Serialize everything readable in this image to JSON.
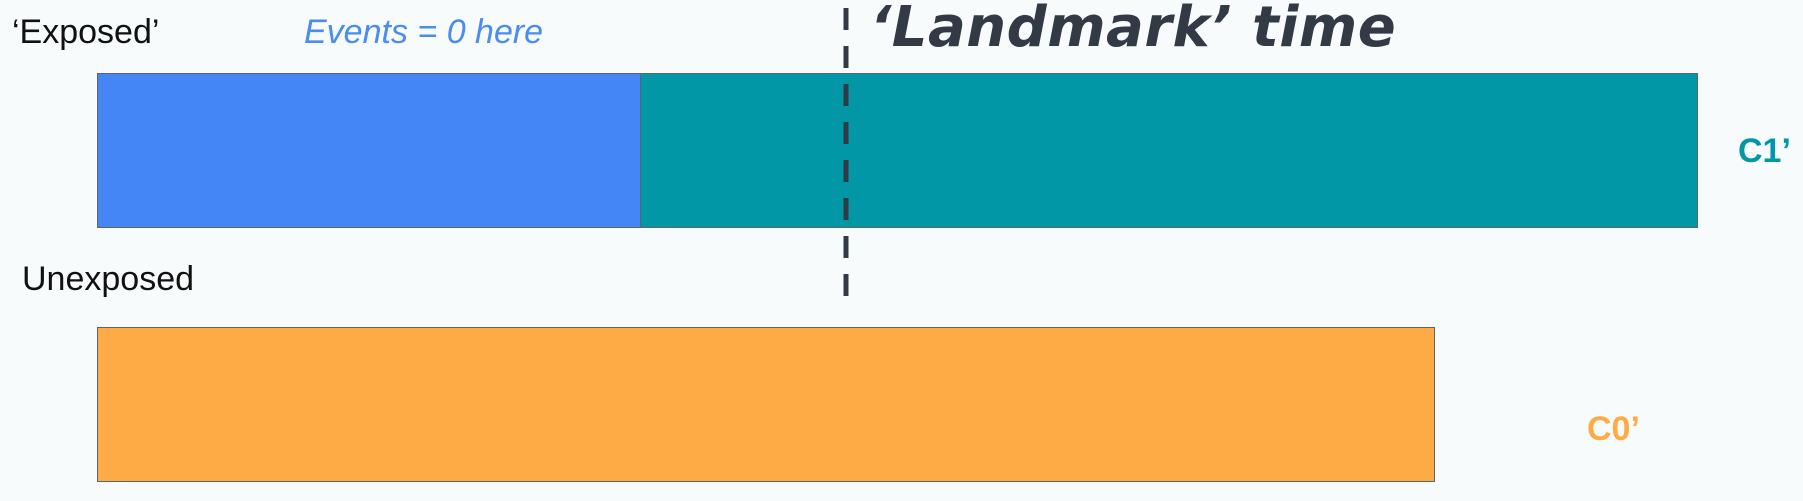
{
  "labels": {
    "exposed": "‘Exposed’",
    "unexposed": "Unexposed",
    "events_note": "Events = 0 here",
    "landmark_time": "‘Landmark’ time",
    "c1": "C1’",
    "c0": "C0’"
  },
  "colors": {
    "background": "#f7fbfc",
    "exposed_zero_bar": "#4486f5",
    "exposed_c1_bar": "#0297a7",
    "unexposed_c0_bar": "#ffab45",
    "landmark": "#323a45",
    "events_note": "#4a8cf0",
    "c1_label": "#0297a7",
    "c0_label": "#ffab45"
  }
}
